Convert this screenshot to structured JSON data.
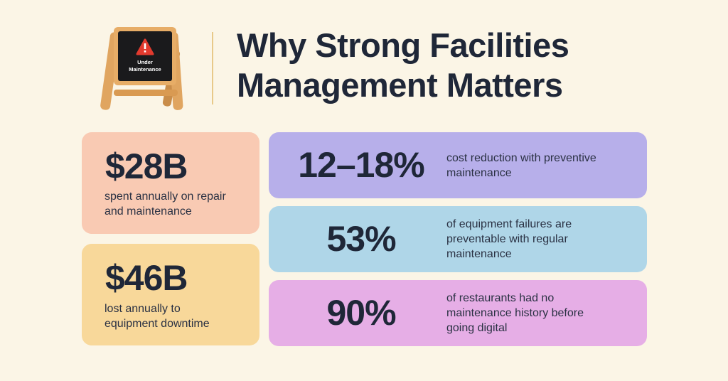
{
  "title": {
    "line1": "Why Strong Facilities",
    "line2": "Management Matters"
  },
  "sign": {
    "line1": "Under",
    "line2": "Maintenance"
  },
  "stats": [
    {
      "value": "$28B",
      "desc1": "spent annually on repair",
      "desc2": "and maintenance",
      "color": "#f9cab3"
    },
    {
      "value": "$46B",
      "desc1": "lost annually to",
      "desc2": "equipment downtime",
      "color": "#f8d89a"
    },
    {
      "value": "12–18%",
      "desc1": "cost reduction with preventive",
      "desc2": "maintenance",
      "color": "#b7afea"
    },
    {
      "value": "53%",
      "desc1": "of equipment failures are",
      "desc2": "preventable with regular",
      "desc3": "maintenance",
      "color": "#afd6e8"
    },
    {
      "value": "90%",
      "desc1": "of restaurants had no",
      "desc2": "maintenance history before",
      "desc3": "going digital",
      "color": "#e6aee6"
    }
  ],
  "colors": {
    "background": "#fbf5e6",
    "divider": "#e8c98a",
    "text": "#1f2738",
    "warning": "#e23a2e"
  },
  "icons": {
    "sign": "under-maintenance-sign-icon",
    "warning": "warning-icon"
  }
}
